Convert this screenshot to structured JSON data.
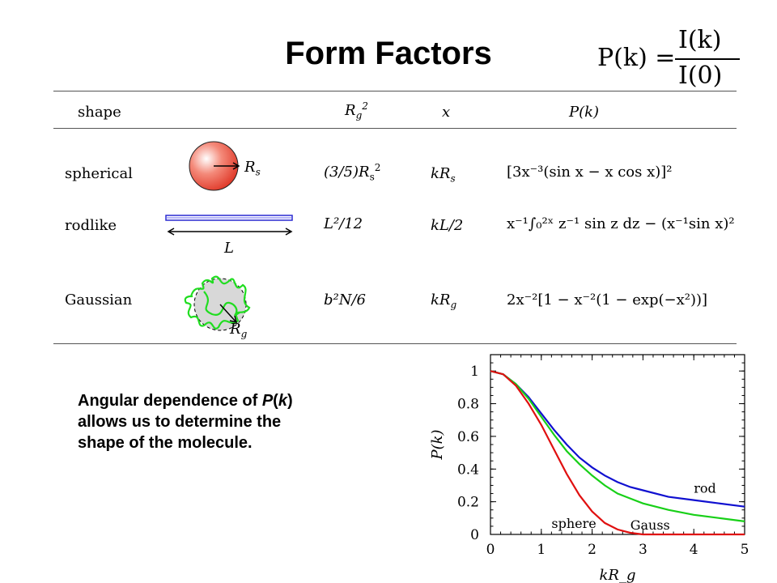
{
  "title": "Form Factors",
  "formula": {
    "lhs": "P(k) =",
    "numerator": "I(k)",
    "denominator": "I(0)"
  },
  "table": {
    "headers": {
      "shape": "shape",
      "rg": "R",
      "rg_sub": "g",
      "rg_sup": "2",
      "x": "x",
      "pk": "P(k)"
    },
    "rows": [
      {
        "shape": "spherical",
        "rg2": "(3/5)R",
        "rg2_sub": "s",
        "rg2_sup": "2",
        "x": "kR",
        "x_sub": "s",
        "pk": "[3x⁻³(sin x − x cos x)]²",
        "label": "R",
        "label_sub": "s"
      },
      {
        "shape": "rodlike",
        "rg2": "L²/12",
        "x": "kL/2",
        "pk": "x⁻¹∫₀²ˣ z⁻¹ sin z dz − (x⁻¹sin x)²",
        "label": "L"
      },
      {
        "shape": "Gaussian",
        "rg2": "b²N/6",
        "x": "kR",
        "x_sub": "g",
        "pk": "2x⁻²[1 − x⁻²(1 − exp(−x²))]",
        "label": "R",
        "label_sub": "g"
      }
    ]
  },
  "caption": {
    "line1_pre": "Angular dependence of ",
    "line1_em": "P",
    "line1_mid": "(",
    "line1_em2": "k",
    "line1_post": ")",
    "line2": "allows us to determine the",
    "line3": "shape of the molecule."
  },
  "colors": {
    "sphere_curve": "#e01010",
    "gauss_curve": "#18d018",
    "rod_curve": "#1010d0",
    "sphere_fill": "#ef4a3a",
    "coil": "#22dd22",
    "rod_fill": "#3a3aee"
  },
  "chart_data": {
    "type": "line",
    "xlabel": "kR_g",
    "ylabel": "P(k)",
    "xlim": [
      0,
      5
    ],
    "ylim": [
      0,
      1.1
    ],
    "xticks": [
      "0",
      "1",
      "2",
      "3",
      "4",
      "5"
    ],
    "yticks": [
      "0",
      "0.2",
      "0.4",
      "0.6",
      "0.8",
      "1"
    ],
    "x": [
      0,
      0.25,
      0.5,
      0.75,
      1.0,
      1.25,
      1.5,
      1.75,
      2.0,
      2.25,
      2.5,
      2.75,
      3.0,
      3.5,
      4.0,
      4.5,
      5.0
    ],
    "series": [
      {
        "name": "rod",
        "values": [
          1.0,
          0.98,
          0.92,
          0.84,
          0.74,
          0.64,
          0.55,
          0.47,
          0.41,
          0.36,
          0.32,
          0.29,
          0.27,
          0.23,
          0.21,
          0.19,
          0.17
        ]
      },
      {
        "name": "Gauss",
        "values": [
          1.0,
          0.98,
          0.92,
          0.83,
          0.72,
          0.61,
          0.51,
          0.43,
          0.36,
          0.3,
          0.25,
          0.22,
          0.19,
          0.15,
          0.12,
          0.1,
          0.08
        ]
      },
      {
        "name": "sphere",
        "values": [
          1.0,
          0.98,
          0.91,
          0.8,
          0.67,
          0.52,
          0.37,
          0.24,
          0.14,
          0.07,
          0.03,
          0.01,
          0.0,
          0.0,
          0.0,
          0.0,
          0.0
        ]
      }
    ],
    "annotations": [
      "rod",
      "Gauss",
      "sphere"
    ]
  }
}
